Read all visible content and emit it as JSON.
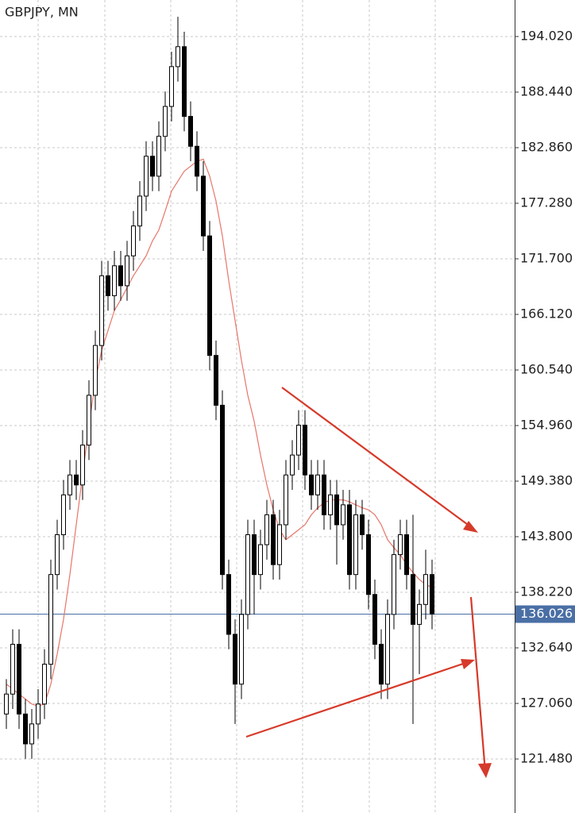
{
  "chart_data": {
    "type": "candlestick",
    "title": "GBPJPY, MN",
    "ylim": [
      197.687,
      116.06
    ],
    "yticks": [
      {
        "value": 194.02,
        "label": "194.020"
      },
      {
        "value": 188.44,
        "label": "188.440"
      },
      {
        "value": 182.86,
        "label": "182.860"
      },
      {
        "value": 177.28,
        "label": "177.280"
      },
      {
        "value": 171.7,
        "label": "171.700"
      },
      {
        "value": 166.12,
        "label": "166.120"
      },
      {
        "value": 160.54,
        "label": "160.540"
      },
      {
        "value": 154.96,
        "label": "154.960"
      },
      {
        "value": 149.38,
        "label": "149.380"
      },
      {
        "value": 143.8,
        "label": "143.800"
      },
      {
        "value": 138.22,
        "label": "138.220"
      },
      {
        "value": 132.64,
        "label": "132.640"
      },
      {
        "value": 127.06,
        "label": "127.060"
      },
      {
        "value": 121.48,
        "label": "121.480"
      }
    ],
    "grid": true,
    "current_price": 136.026,
    "current_price_color": "#4a6fa5",
    "up_color": "#ffffff",
    "down_color": "#000000",
    "candles": {
      "open": [
        126,
        128,
        133,
        126,
        123,
        125,
        127,
        131,
        140,
        144,
        148,
        150,
        149,
        153,
        158,
        163,
        170,
        168,
        171,
        169,
        172,
        175,
        178,
        182,
        180,
        184,
        187,
        191,
        193,
        186,
        183,
        180,
        174,
        162,
        157,
        140,
        134,
        129,
        136,
        144,
        140,
        143,
        146,
        141,
        145,
        150,
        152,
        155,
        150,
        148,
        150,
        146,
        148,
        145,
        147,
        140,
        146,
        144,
        138,
        133,
        129,
        136,
        142,
        144,
        140,
        135,
        137,
        140
      ],
      "high": [
        129.5,
        134.5,
        134.5,
        127.5,
        126.5,
        128.5,
        132.5,
        141.5,
        145.5,
        149.5,
        151.5,
        151.5,
        154.5,
        159.5,
        164.5,
        171.5,
        171.5,
        172.5,
        172.5,
        173.5,
        176.5,
        179.5,
        183.5,
        183.5,
        185.5,
        188.5,
        192.5,
        196,
        194.5,
        187.5,
        184.5,
        181.5,
        175.5,
        163.5,
        158.5,
        141.5,
        135.5,
        137.5,
        145.5,
        145.5,
        144.5,
        147.5,
        147.5,
        146.5,
        151.5,
        153.5,
        156.5,
        156.5,
        151.5,
        151.5,
        151.5,
        149.5,
        149.5,
        148.5,
        148.5,
        147.5,
        147.5,
        145.5,
        139.5,
        134.5,
        137.5,
        143.5,
        145.5,
        145.5,
        146,
        138.5,
        142.5,
        141.5
      ],
      "low": [
        124.5,
        126.5,
        124.5,
        121.5,
        121.5,
        123.5,
        125.5,
        129.5,
        138.5,
        142.5,
        146.5,
        147.5,
        147.5,
        151.5,
        156.5,
        161.5,
        166.5,
        166.5,
        167.5,
        167.5,
        170.5,
        173.5,
        176.5,
        178.5,
        178.5,
        182.5,
        185.5,
        189.5,
        184.5,
        181.5,
        178.5,
        172.5,
        160.5,
        155.5,
        138.5,
        132.5,
        125,
        127.5,
        134.5,
        136,
        138.5,
        141.5,
        139.5,
        139.5,
        143.5,
        148.5,
        150.5,
        148.5,
        146.5,
        146.5,
        144.5,
        144.5,
        141,
        143.5,
        138.5,
        138.5,
        142.5,
        136.5,
        131.5,
        127.5,
        127.5,
        134.5,
        140.5,
        138.5,
        125,
        130,
        135.5,
        134.5
      ],
      "close": [
        128,
        133,
        126,
        123,
        125,
        127,
        131,
        140,
        144,
        148,
        150,
        149,
        153,
        158,
        163,
        170,
        168,
        171,
        169,
        172,
        175,
        178,
        182,
        180,
        184,
        187,
        191,
        193,
        186,
        183,
        180,
        174,
        162,
        157,
        140,
        134,
        129,
        136,
        144,
        140,
        143,
        146,
        141,
        145,
        150,
        152,
        155,
        150,
        148,
        150,
        146,
        148,
        145,
        147,
        140,
        146,
        144,
        138,
        133,
        129,
        136,
        142,
        144,
        140,
        135,
        137,
        140,
        136.03
      ]
    },
    "ma": {
      "color": "#e8766a",
      "values": [
        129,
        128.5,
        128,
        127.5,
        127,
        126.8,
        127,
        129,
        132,
        135.5,
        140,
        145,
        150,
        155,
        159.4,
        162.5,
        164.5,
        166.5,
        167.6,
        168.8,
        170,
        171,
        172,
        173.5,
        174.6,
        176.5,
        178.5,
        179.5,
        180.5,
        181,
        181.5,
        181.7,
        180,
        177.5,
        174,
        169.5,
        165.5,
        161.5,
        158,
        155.4,
        152,
        149,
        146.5,
        144.5,
        143.5,
        144,
        144.5,
        145,
        146,
        146.7,
        147.2,
        147.5,
        147.5,
        147.5,
        147.3,
        147,
        146.7,
        146.5,
        146,
        145,
        143.5,
        142.7,
        142,
        141,
        140.2,
        139.5,
        139,
        138.7
      ]
    }
  }
}
